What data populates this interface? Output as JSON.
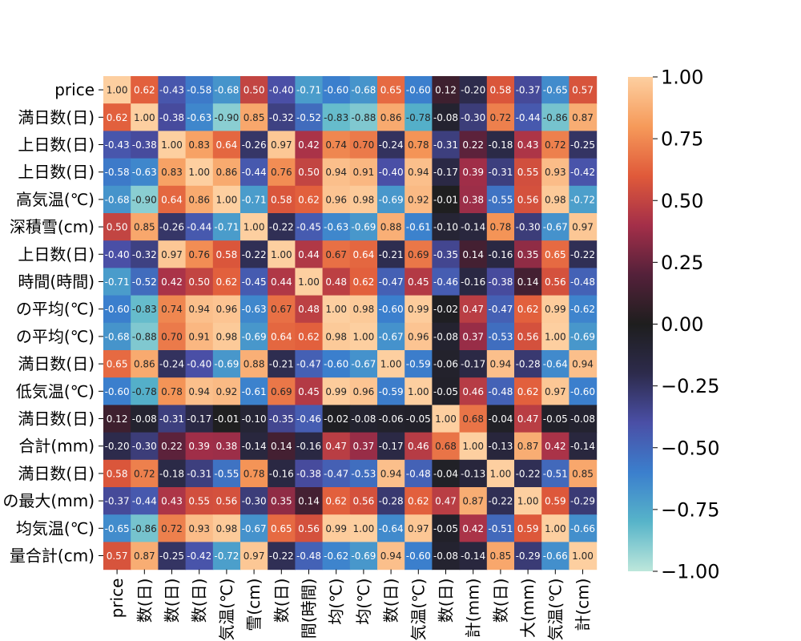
{
  "chart_data": {
    "type": "heatmap",
    "labels": [
      "price",
      "満日数(日)",
      "上日数(日)",
      "上日数(日)",
      "高気温(℃)",
      "深積雪(cm)",
      "上日数(日)",
      "時間(時間)",
      "の平均(℃)",
      "の平均(℃)",
      "満日数(日)",
      "低気温(℃)",
      "満日数(日)",
      "合計(mm)",
      "満日数(日)",
      "の最大(mm)",
      "均気温(℃)",
      "量合計(cm)"
    ],
    "col_labels": [
      "price",
      "数(日)",
      "数(日)",
      "数(日)",
      "気温(℃)",
      "雪(cm)",
      "数(日)",
      "間(時間)",
      "均(℃)",
      "均(℃)",
      "数(日)",
      "気温(℃)",
      "数(日)",
      "計(mm)",
      "数(日)",
      "大(mm)",
      "気温(℃)",
      "計(cm)"
    ],
    "matrix": [
      [
        1.0,
        0.62,
        -0.43,
        -0.58,
        -0.68,
        0.5,
        -0.4,
        -0.71,
        -0.6,
        -0.68,
        0.65,
        -0.6,
        0.12,
        -0.2,
        0.58,
        -0.37,
        -0.65,
        0.57
      ],
      [
        0.62,
        1.0,
        -0.38,
        -0.63,
        -0.9,
        0.85,
        -0.32,
        -0.52,
        -0.83,
        -0.88,
        0.86,
        -0.78,
        -0.08,
        -0.3,
        0.72,
        -0.44,
        -0.86,
        0.87
      ],
      [
        -0.43,
        -0.38,
        1.0,
        0.83,
        0.64,
        -0.26,
        0.97,
        0.42,
        0.74,
        0.7,
        -0.24,
        0.78,
        -0.31,
        0.22,
        -0.18,
        0.43,
        0.72,
        -0.25
      ],
      [
        -0.58,
        -0.63,
        0.83,
        1.0,
        0.86,
        -0.44,
        0.76,
        0.5,
        0.94,
        0.91,
        -0.4,
        0.94,
        -0.17,
        0.39,
        -0.31,
        0.55,
        0.93,
        -0.42
      ],
      [
        -0.68,
        -0.9,
        0.64,
        0.86,
        1.0,
        -0.71,
        0.58,
        0.62,
        0.96,
        0.98,
        -0.69,
        0.92,
        -0.01,
        0.38,
        -0.55,
        0.56,
        0.98,
        -0.72
      ],
      [
        0.5,
        0.85,
        -0.26,
        -0.44,
        -0.71,
        1.0,
        -0.22,
        -0.45,
        -0.63,
        -0.69,
        0.88,
        -0.61,
        -0.1,
        -0.14,
        0.78,
        -0.3,
        -0.67,
        0.97
      ],
      [
        -0.4,
        -0.32,
        0.97,
        0.76,
        0.58,
        -0.22,
        1.0,
        0.44,
        0.67,
        0.64,
        -0.21,
        0.69,
        -0.35,
        0.14,
        -0.16,
        0.35,
        0.65,
        -0.22
      ],
      [
        -0.71,
        -0.52,
        0.42,
        0.5,
        0.62,
        -0.45,
        0.44,
        1.0,
        0.48,
        0.62,
        -0.47,
        0.45,
        -0.46,
        -0.16,
        -0.38,
        0.14,
        0.56,
        -0.48
      ],
      [
        -0.6,
        -0.83,
        0.74,
        0.94,
        0.96,
        -0.63,
        0.67,
        0.48,
        1.0,
        0.98,
        -0.6,
        0.99,
        -0.02,
        0.47,
        -0.47,
        0.62,
        0.99,
        -0.62
      ],
      [
        -0.68,
        -0.88,
        0.7,
        0.91,
        0.98,
        -0.69,
        0.64,
        0.62,
        0.98,
        1.0,
        -0.67,
        0.96,
        -0.08,
        0.37,
        -0.53,
        0.56,
        1.0,
        -0.69
      ],
      [
        0.65,
        0.86,
        -0.24,
        -0.4,
        -0.69,
        0.88,
        -0.21,
        -0.47,
        -0.6,
        -0.67,
        1.0,
        -0.59,
        -0.06,
        -0.17,
        0.94,
        -0.28,
        -0.64,
        0.94
      ],
      [
        -0.6,
        -0.78,
        0.78,
        0.94,
        0.92,
        -0.61,
        0.69,
        0.45,
        0.99,
        0.96,
        -0.59,
        1.0,
        -0.05,
        0.46,
        -0.48,
        0.62,
        0.97,
        -0.6
      ],
      [
        0.12,
        -0.08,
        -0.31,
        -0.17,
        -0.01,
        -0.1,
        -0.35,
        -0.46,
        -0.02,
        -0.08,
        -0.06,
        -0.05,
        1.0,
        0.68,
        -0.04,
        0.47,
        -0.05,
        -0.08
      ],
      [
        -0.2,
        -0.3,
        0.22,
        0.39,
        0.38,
        -0.14,
        0.14,
        -0.16,
        0.47,
        0.37,
        -0.17,
        0.46,
        0.68,
        1.0,
        -0.13,
        0.87,
        0.42,
        -0.14
      ],
      [
        0.58,
        0.72,
        -0.18,
        -0.31,
        -0.55,
        0.78,
        -0.16,
        -0.38,
        -0.47,
        -0.53,
        0.94,
        -0.48,
        -0.04,
        -0.13,
        1.0,
        -0.22,
        -0.51,
        0.85
      ],
      [
        -0.37,
        -0.44,
        0.43,
        0.55,
        0.56,
        -0.3,
        0.35,
        0.14,
        0.62,
        0.56,
        -0.28,
        0.62,
        0.47,
        0.87,
        -0.22,
        1.0,
        0.59,
        -0.29
      ],
      [
        -0.65,
        -0.86,
        0.72,
        0.93,
        0.98,
        -0.67,
        0.65,
        0.56,
        0.99,
        1.0,
        -0.64,
        0.97,
        -0.05,
        0.42,
        -0.51,
        0.59,
        1.0,
        -0.66
      ],
      [
        0.57,
        0.87,
        -0.25,
        -0.42,
        -0.72,
        0.97,
        -0.22,
        -0.48,
        -0.62,
        -0.69,
        0.94,
        -0.6,
        -0.08,
        -0.14,
        0.85,
        -0.29,
        -0.66,
        1.0
      ]
    ],
    "vmin": -1.0,
    "vmax": 1.0,
    "colormap": "icefire",
    "colorbar_ticks": [
      "−1.00",
      "−0.75",
      "−0.50",
      "−0.25",
      "0.00",
      "0.25",
      "0.50",
      "0.75",
      "1.00"
    ],
    "colorbar_tick_values": [
      -1.0,
      -0.75,
      -0.5,
      -0.25,
      0.0,
      0.25,
      0.5,
      0.75,
      1.0
    ],
    "annotated": true,
    "title": "",
    "xlabel": "",
    "ylabel": ""
  },
  "colors": {
    "stops": [
      "#bde7db",
      "#57b4c9",
      "#3b7fcd",
      "#4a4fa6",
      "#2d2b4c",
      "#1e1e1e",
      "#54213a",
      "#a42f49",
      "#e05a3a",
      "#f69a5a",
      "#fdcfa0"
    ]
  }
}
